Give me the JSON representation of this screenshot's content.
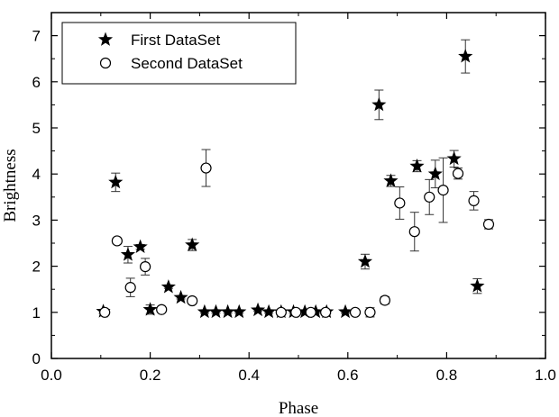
{
  "chart_data": {
    "type": "scatter",
    "xlabel": "Phase",
    "ylabel": "Brightness",
    "xlim": [
      0.0,
      1.0
    ],
    "ylim": [
      0,
      7.5
    ],
    "xticks": [
      0.0,
      0.2,
      0.4,
      0.6,
      0.8,
      1.0
    ],
    "xtick_labels": [
      "0.0",
      "0.2",
      "0.4",
      "0.6",
      "0.8",
      "1.0"
    ],
    "yticks": [
      0,
      1,
      2,
      3,
      4,
      5,
      6,
      7
    ],
    "ytick_labels": [
      "0",
      "1",
      "2",
      "3",
      "4",
      "5",
      "6",
      "7"
    ],
    "grid": false,
    "legend_position": "top-left",
    "series": [
      {
        "name": "First DataSet",
        "marker": "star",
        "points": [
          {
            "x": 0.105,
            "y": 1.02,
            "err": 0.04
          },
          {
            "x": 0.13,
            "y": 3.82,
            "err": 0.2
          },
          {
            "x": 0.155,
            "y": 2.25,
            "err": 0.18
          },
          {
            "x": 0.18,
            "y": 2.42,
            "err": 0.05
          },
          {
            "x": 0.2,
            "y": 1.06,
            "err": 0.1
          },
          {
            "x": 0.237,
            "y": 1.55,
            "err": 0.03
          },
          {
            "x": 0.262,
            "y": 1.32,
            "err": 0.03
          },
          {
            "x": 0.285,
            "y": 2.46,
            "err": 0.12
          },
          {
            "x": 0.31,
            "y": 1.01,
            "err": 0.03
          },
          {
            "x": 0.333,
            "y": 1.01,
            "err": 0.03
          },
          {
            "x": 0.357,
            "y": 1.01,
            "err": 0.03
          },
          {
            "x": 0.38,
            "y": 1.01,
            "err": 0.03
          },
          {
            "x": 0.418,
            "y": 1.05,
            "err": 0.03
          },
          {
            "x": 0.44,
            "y": 1.01,
            "err": 0.03
          },
          {
            "x": 0.465,
            "y": 1.01,
            "err": 0.03
          },
          {
            "x": 0.49,
            "y": 1.01,
            "err": 0.03
          },
          {
            "x": 0.513,
            "y": 1.01,
            "err": 0.03
          },
          {
            "x": 0.535,
            "y": 1.01,
            "err": 0.03
          },
          {
            "x": 0.557,
            "y": 1.01,
            "err": 0.03
          },
          {
            "x": 0.595,
            "y": 1.01,
            "err": 0.03
          },
          {
            "x": 0.635,
            "y": 2.1,
            "err": 0.16
          },
          {
            "x": 0.663,
            "y": 5.5,
            "err": 0.32
          },
          {
            "x": 0.687,
            "y": 3.85,
            "err": 0.12
          },
          {
            "x": 0.74,
            "y": 4.17,
            "err": 0.12
          },
          {
            "x": 0.777,
            "y": 4.0,
            "err": 0.3
          },
          {
            "x": 0.815,
            "y": 4.33,
            "err": 0.18
          },
          {
            "x": 0.838,
            "y": 6.55,
            "err": 0.36
          },
          {
            "x": 0.862,
            "y": 1.57,
            "err": 0.16
          }
        ]
      },
      {
        "name": "Second DataSet",
        "marker": "open-circle",
        "points": [
          {
            "x": 0.108,
            "y": 1.0,
            "err": 0.05
          },
          {
            "x": 0.133,
            "y": 2.55,
            "err": 0.06
          },
          {
            "x": 0.16,
            "y": 1.54,
            "err": 0.2
          },
          {
            "x": 0.19,
            "y": 1.99,
            "err": 0.18
          },
          {
            "x": 0.223,
            "y": 1.06,
            "err": 0.04
          },
          {
            "x": 0.285,
            "y": 1.25,
            "err": 0.06
          },
          {
            "x": 0.313,
            "y": 4.13,
            "err": 0.4
          },
          {
            "x": 0.465,
            "y": 1.0,
            "err": 0.03
          },
          {
            "x": 0.495,
            "y": 1.0,
            "err": 0.03
          },
          {
            "x": 0.525,
            "y": 1.0,
            "err": 0.03
          },
          {
            "x": 0.555,
            "y": 1.0,
            "err": 0.03
          },
          {
            "x": 0.615,
            "y": 1.0,
            "err": 0.03
          },
          {
            "x": 0.645,
            "y": 1.0,
            "err": 0.1
          },
          {
            "x": 0.675,
            "y": 1.26,
            "err": 0.08
          },
          {
            "x": 0.705,
            "y": 3.37,
            "err": 0.35
          },
          {
            "x": 0.735,
            "y": 2.75,
            "err": 0.42
          },
          {
            "x": 0.765,
            "y": 3.5,
            "err": 0.38
          },
          {
            "x": 0.793,
            "y": 3.65,
            "err": 0.7
          },
          {
            "x": 0.823,
            "y": 4.01,
            "err": 0.12
          },
          {
            "x": 0.855,
            "y": 3.42,
            "err": 0.2
          },
          {
            "x": 0.885,
            "y": 2.91,
            "err": 0.1
          }
        ]
      }
    ]
  }
}
